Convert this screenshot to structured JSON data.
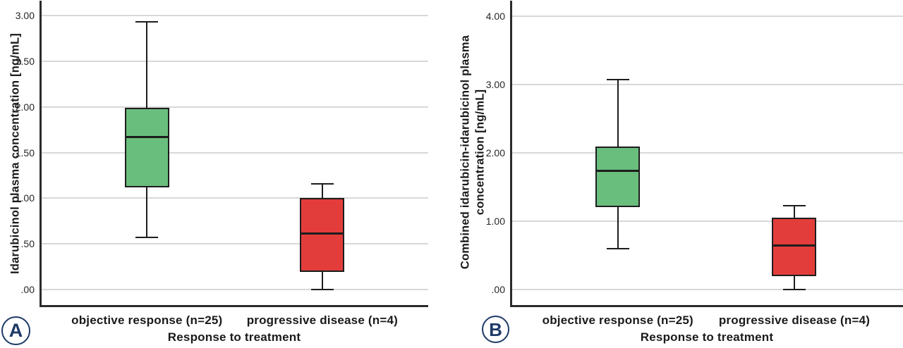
{
  "colors": {
    "objective_response_green": "#6abe7d",
    "progressive_disease_red": "#e23d3b",
    "badge_navy": "#1e3a68",
    "gridline_gray": "#d8d8d8",
    "axis_dark": "#2b2b2b"
  },
  "chart_data": [
    {
      "type": "box",
      "panel_label": "A",
      "title": "",
      "xlabel": "Response to treatment",
      "ylabel": "Idarubicinol plasma concentration [ng/mL]",
      "ylabel_lines": [
        "Idarubicinol plasma concentration [ng/mL]"
      ],
      "ylim": [
        -0.18,
        3.15
      ],
      "grid": true,
      "legend": false,
      "ytick_values": [
        0.0,
        0.5,
        1.0,
        1.5,
        2.0,
        2.5,
        3.0
      ],
      "ytick_labels": [
        ".00",
        ".50",
        "1.00",
        "1.50",
        "2.00",
        "2.50",
        "3.00"
      ],
      "categories": [
        "objective response (n=25)",
        "progressive disease (n=4)"
      ],
      "series": [
        {
          "name": "objective response (n=25)",
          "color": "#6abe7d",
          "whisker_low": 0.57,
          "q1": 1.12,
          "median": 1.67,
          "q3": 1.99,
          "whisker_high": 2.93
        },
        {
          "name": "progressive disease (n=4)",
          "color": "#e23d3b",
          "whisker_low": 0.0,
          "q1": 0.19,
          "median": 0.61,
          "q3": 1.0,
          "whisker_high": 1.16
        }
      ]
    },
    {
      "type": "box",
      "panel_label": "B",
      "title": "",
      "xlabel": "Response to treatment",
      "ylabel": "Combined idarubicin-idarubicinol plasma concentration [ng/mL]",
      "ylabel_lines": [
        "Combined idarubicin-idarubicinol plasma",
        "concentration [ng/mL]"
      ],
      "ylim": [
        -0.24,
        4.21
      ],
      "grid": true,
      "legend": false,
      "ytick_values": [
        0.0,
        1.0,
        2.0,
        3.0,
        4.0
      ],
      "ytick_labels": [
        ".00",
        "1.00",
        "2.00",
        "3.00",
        "4.00"
      ],
      "categories": [
        "objective response (n=25)",
        "progressive disease (n=4)"
      ],
      "series": [
        {
          "name": "objective response (n=25)",
          "color": "#6abe7d",
          "whisker_low": 0.6,
          "q1": 1.21,
          "median": 1.74,
          "q3": 2.09,
          "whisker_high": 3.07
        },
        {
          "name": "progressive disease (n=4)",
          "color": "#e23d3b",
          "whisker_low": 0.0,
          "q1": 0.19,
          "median": 0.64,
          "q3": 1.05,
          "whisker_high": 1.23
        }
      ]
    }
  ]
}
